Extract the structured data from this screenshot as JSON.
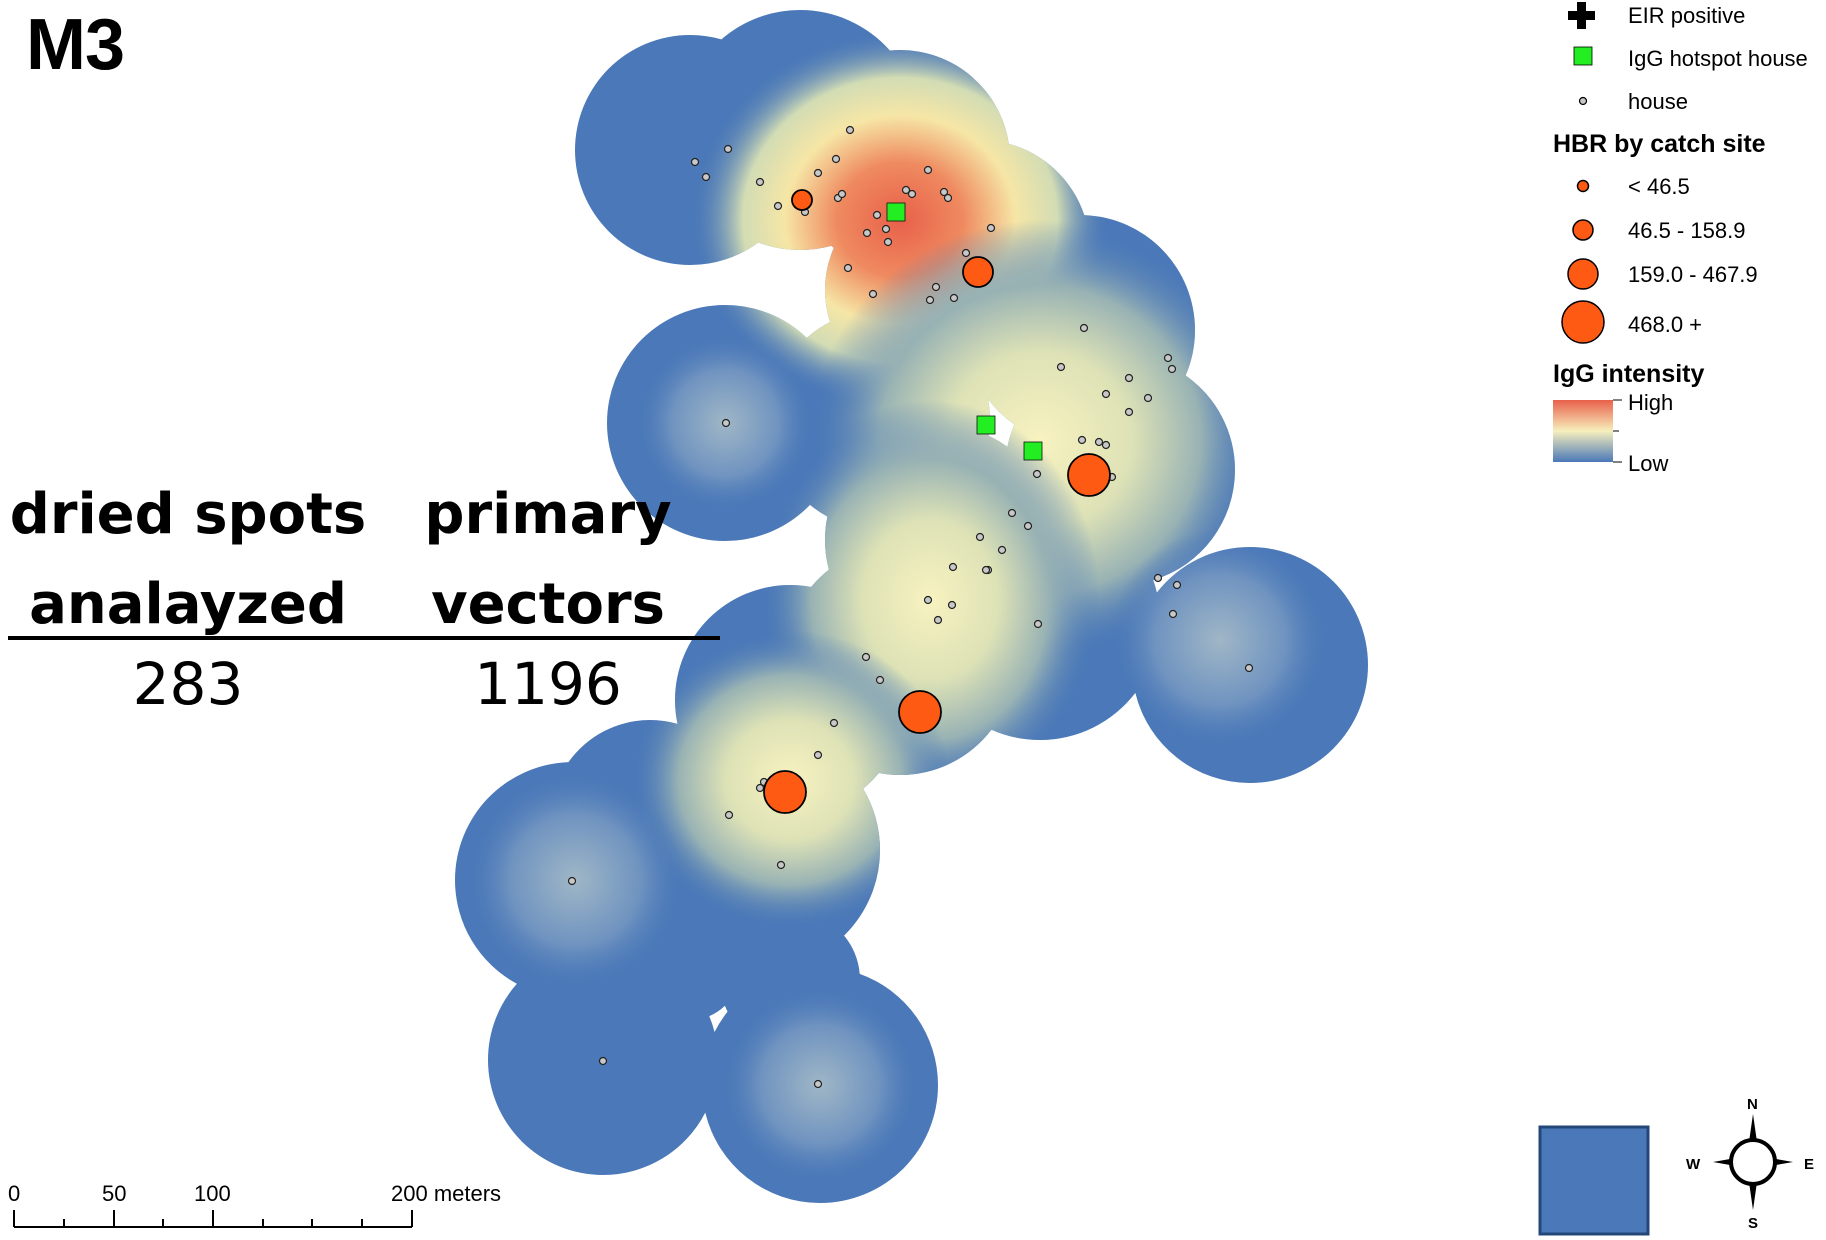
{
  "panel_title": "M3",
  "stats": {
    "col1_header_line1": "dried spots",
    "col1_header_line2": "analayzed",
    "col2_header_line1": "primary",
    "col2_header_line2": "vectors",
    "col1_value": "283",
    "col2_value": "1196"
  },
  "legend": {
    "eir_positive": "EIR positive",
    "igg_hotspot_house": "IgG hotspot house",
    "house": "house",
    "hbr_title": "HBR by catch site",
    "hbr_classes": [
      "< 46.5",
      "46.5 - 158.9",
      "159.0 - 467.9",
      "468.0 +"
    ],
    "igg_title": "IgG intensity",
    "igg_high": "High",
    "igg_low": "Low"
  },
  "scale_bar": {
    "ticks": [
      "0",
      "50",
      "100",
      "200 meters"
    ]
  },
  "compass": {
    "n": "N",
    "s": "S",
    "e": "E",
    "w": "W"
  },
  "colors": {
    "buffer_blue": "#4a78b8",
    "hbr_orange": "#ff5a14",
    "hotspot_green": "#22ee22",
    "heat_high": "#e8604a",
    "heat_low": "#4a78b8"
  }
}
